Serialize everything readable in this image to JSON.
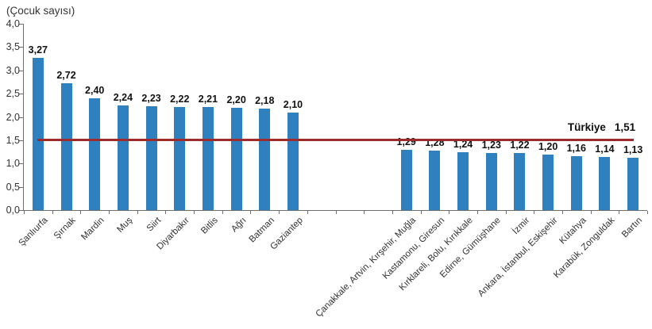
{
  "chart_data": {
    "type": "bar",
    "ylabel": "(Çocuk sayısı)",
    "categories": [
      "Şanlıurfa",
      "Şırnak",
      "Mardin",
      "Muş",
      "Siirt",
      "Diyarbakır",
      "Bitlis",
      "Ağrı",
      "Batman",
      "Gaziantep",
      "Çanakkale, Artvin, Kırşehir, Muğla",
      "Kastamonu, Giresun",
      "Kırklareli, Bolu, Kırıkkale",
      "Edirne, Gümüşhane",
      "İzmir",
      "Ankara, İstanbul, Eskişehir",
      "Kütahya",
      "Karabük, Zonguldak",
      "Bartın"
    ],
    "values": [
      3.27,
      2.72,
      2.4,
      2.24,
      2.23,
      2.22,
      2.21,
      2.2,
      2.18,
      2.1,
      1.29,
      1.28,
      1.24,
      1.23,
      1.22,
      1.2,
      1.16,
      1.14,
      1.13
    ],
    "value_labels": [
      "3,27",
      "2,72",
      "2,40",
      "2,24",
      "2,23",
      "2,22",
      "2,21",
      "2,20",
      "2,18",
      "2,10",
      "1,29",
      "1,28",
      "1,24",
      "1,23",
      "1,22",
      "1,20",
      "1,16",
      "1,14",
      "1,13"
    ],
    "slot_indices": [
      0,
      1,
      2,
      3,
      4,
      5,
      6,
      7,
      8,
      9,
      13,
      14,
      15,
      16,
      17,
      18,
      19,
      20,
      21
    ],
    "total_slots": 22,
    "bar_color": "#2E80BF",
    "ylim": [
      0,
      4
    ],
    "ytick_step": 0.5,
    "ytick_labels": [
      "0,0",
      "0,5",
      "1,0",
      "1,5",
      "2,0",
      "2,5",
      "3,0",
      "3,5",
      "4,0"
    ],
    "grid": false,
    "legend": null,
    "reference_line": {
      "label": "Türkiye",
      "value_label": "1,51",
      "value": 1.51,
      "color": "#9E2B2B"
    }
  }
}
